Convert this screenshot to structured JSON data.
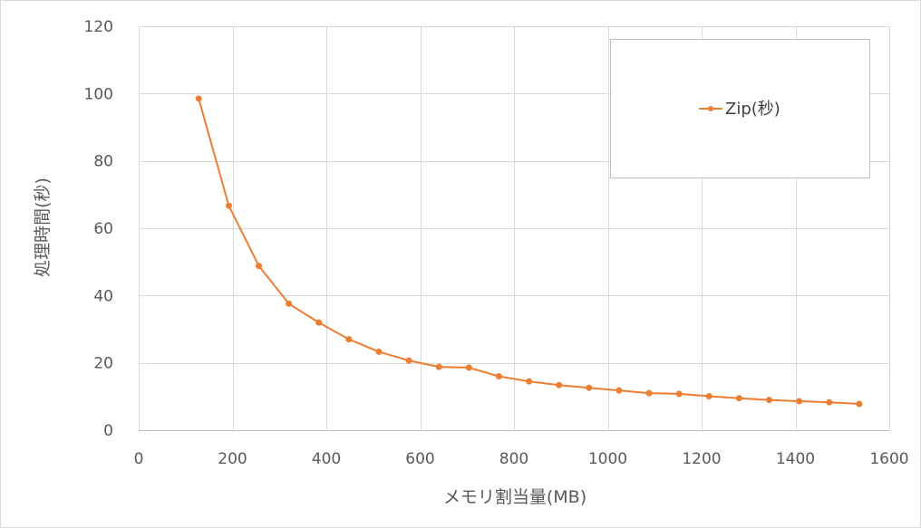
{
  "chart_data": {
    "type": "line",
    "title": "",
    "xlabel": "メモリ割当量(MB)",
    "ylabel": "処理時間(秒)",
    "xlim": [
      0,
      1600
    ],
    "ylim": [
      0,
      120
    ],
    "x_ticks": [
      0,
      200,
      400,
      600,
      800,
      1000,
      1200,
      1400,
      1600
    ],
    "y_ticks": [
      0,
      20,
      40,
      60,
      80,
      100,
      120
    ],
    "grid": true,
    "legend_position": "top-right",
    "series": [
      {
        "name": "Zip(秒)",
        "color": "#ed7d31",
        "marker": "circle",
        "x": [
          128,
          192,
          256,
          320,
          384,
          448,
          512,
          576,
          640,
          704,
          768,
          832,
          896,
          960,
          1024,
          1088,
          1152,
          1216,
          1280,
          1344,
          1408,
          1472,
          1536
        ],
        "y": [
          98.5,
          66.7,
          48.8,
          37.6,
          32.0,
          27.0,
          23.3,
          20.7,
          18.8,
          18.6,
          16.0,
          14.5,
          13.4,
          12.6,
          11.8,
          11.0,
          10.8,
          10.1,
          9.5,
          9.0,
          8.6,
          8.3,
          7.8
        ]
      }
    ]
  }
}
